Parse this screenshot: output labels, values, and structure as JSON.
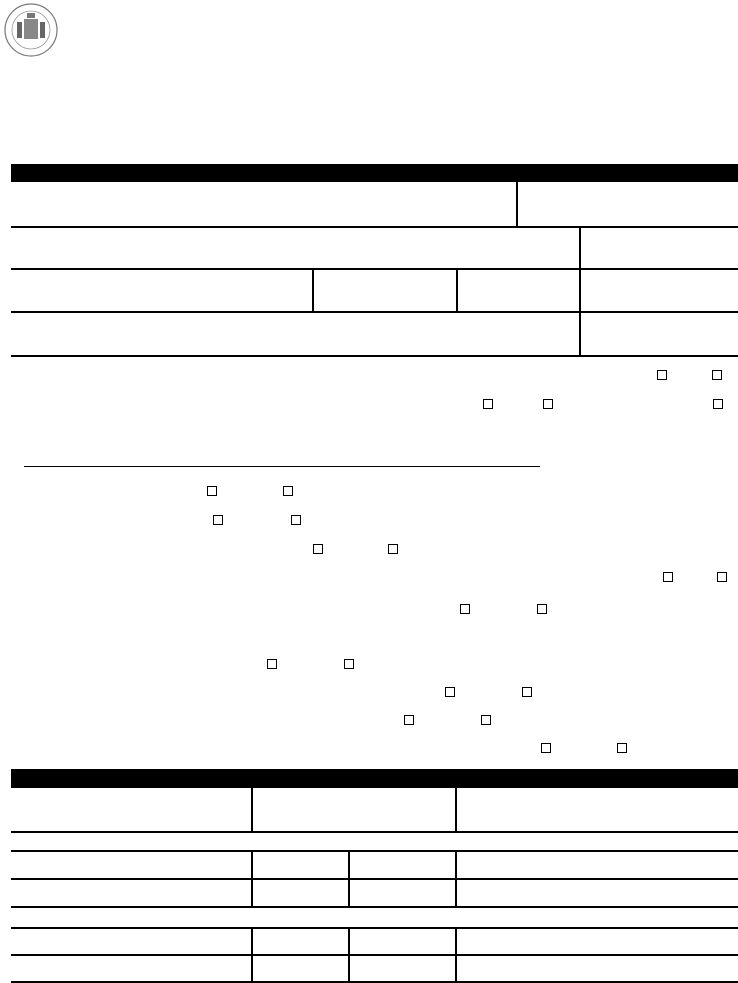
{
  "logo": {
    "name": "seal-logo",
    "color": "#555555"
  },
  "section_header_color": "#000000",
  "checkbox_rows": [
    {
      "boxes": 2,
      "checked": [
        false,
        false
      ]
    },
    {
      "boxes": 3,
      "checked": [
        false,
        false,
        false
      ]
    },
    {
      "boxes": 2,
      "checked": [
        false,
        false
      ]
    },
    {
      "boxes": 2,
      "checked": [
        false,
        false
      ]
    },
    {
      "boxes": 2,
      "checked": [
        false,
        false
      ]
    },
    {
      "boxes": 2,
      "checked": [
        false,
        false
      ]
    },
    {
      "boxes": 2,
      "checked": [
        false,
        false
      ]
    },
    {
      "boxes": 2,
      "checked": [
        false,
        false
      ]
    },
    {
      "boxes": 2,
      "checked": [
        false,
        false
      ]
    },
    {
      "boxes": 2,
      "checked": [
        false,
        false
      ]
    },
    {
      "boxes": 2,
      "checked": [
        false,
        false
      ]
    }
  ]
}
